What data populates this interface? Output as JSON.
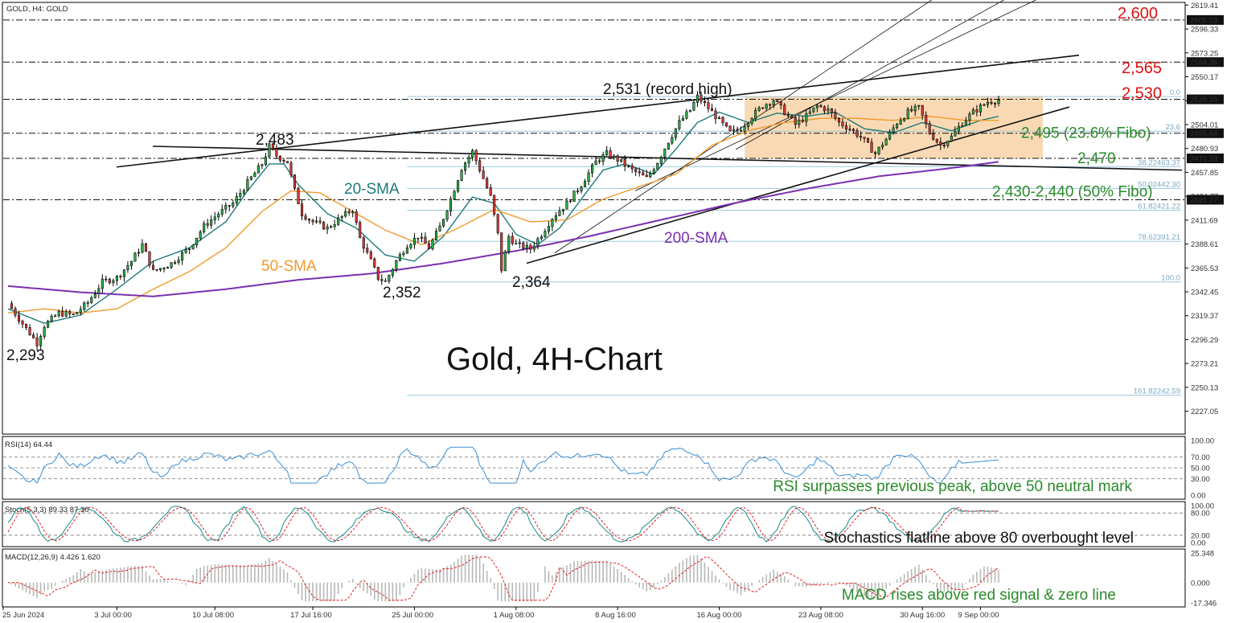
{
  "header": {
    "symbol_label": "GOLD, H4:  GOLD"
  },
  "chart_data": {
    "type": "candlestick",
    "title": "Gold, 4H-Chart",
    "symbol": "GOLD",
    "timeframe": "H4",
    "ylim": [
      2205,
      2622
    ],
    "y_ticks": [
      "2619.41",
      "2596.33",
      "2573.25",
      "2550.17",
      "2527.09",
      "2504.01",
      "2480.93",
      "2457.85",
      "2434.77",
      "2411.69",
      "2388.61",
      "2365.53",
      "2342.45",
      "2319.37",
      "2296.29",
      "2273.21",
      "2250.13",
      "2227.05"
    ],
    "x_ticks": [
      "25 Jun 2024",
      "3 Jul 00:00",
      "10 Jul 08:00",
      "17 Jul 16:00",
      "25 Jul 00:00",
      "1 Aug 08:00",
      "8 Aug 16:00",
      "16 Aug 00:00",
      "23 Aug 08:00",
      "30 Aug 16:00",
      "9 Sep 00:00"
    ],
    "price_path": [
      [
        0,
        2331
      ],
      [
        5,
        2307
      ],
      [
        8,
        2293
      ],
      [
        10,
        2310
      ],
      [
        14,
        2322
      ],
      [
        18,
        2320
      ],
      [
        22,
        2332
      ],
      [
        26,
        2352
      ],
      [
        30,
        2356
      ],
      [
        34,
        2372
      ],
      [
        37,
        2388
      ],
      [
        40,
        2362
      ],
      [
        45,
        2370
      ],
      [
        50,
        2385
      ],
      [
        54,
        2406
      ],
      [
        58,
        2418
      ],
      [
        62,
        2428
      ],
      [
        66,
        2448
      ],
      [
        70,
        2466
      ],
      [
        72,
        2483
      ],
      [
        74,
        2474
      ],
      [
        77,
        2468
      ],
      [
        79,
        2440
      ],
      [
        81,
        2418
      ],
      [
        84,
        2410
      ],
      [
        88,
        2404
      ],
      [
        92,
        2415
      ],
      [
        95,
        2422
      ],
      [
        97,
        2394
      ],
      [
        100,
        2372
      ],
      [
        102,
        2356
      ],
      [
        104,
        2352
      ],
      [
        107,
        2372
      ],
      [
        110,
        2388
      ],
      [
        113,
        2396
      ],
      [
        116,
        2385
      ],
      [
        119,
        2405
      ],
      [
        122,
        2432
      ],
      [
        125,
        2462
      ],
      [
        128,
        2478
      ],
      [
        131,
        2452
      ],
      [
        133,
        2434
      ],
      [
        135,
        2398
      ],
      [
        136,
        2364
      ],
      [
        138,
        2396
      ],
      [
        140,
        2388
      ],
      [
        144,
        2384
      ],
      [
        147,
        2398
      ],
      [
        150,
        2414
      ],
      [
        154,
        2428
      ],
      [
        158,
        2446
      ],
      [
        162,
        2468
      ],
      [
        165,
        2476
      ],
      [
        168,
        2470
      ],
      [
        172,
        2460
      ],
      [
        176,
        2452
      ],
      [
        179,
        2468
      ],
      [
        182,
        2488
      ],
      [
        185,
        2506
      ],
      [
        188,
        2518
      ],
      [
        190,
        2531
      ],
      [
        193,
        2520
      ],
      [
        196,
        2508
      ],
      [
        199,
        2496
      ],
      [
        202,
        2500
      ],
      [
        205,
        2512
      ],
      [
        208,
        2522
      ],
      [
        211,
        2528
      ],
      [
        214,
        2516
      ],
      [
        217,
        2504
      ],
      [
        220,
        2512
      ],
      [
        223,
        2522
      ],
      [
        226,
        2518
      ],
      [
        229,
        2506
      ],
      [
        232,
        2500
      ],
      [
        235,
        2492
      ],
      [
        237,
        2484
      ],
      [
        239,
        2476
      ],
      [
        242,
        2490
      ],
      [
        245,
        2506
      ],
      [
        248,
        2516
      ],
      [
        251,
        2520
      ],
      [
        254,
        2496
      ],
      [
        257,
        2484
      ],
      [
        260,
        2492
      ],
      [
        263,
        2506
      ],
      [
        266,
        2516
      ],
      [
        270,
        2526
      ],
      [
        273,
        2528
      ]
    ],
    "series": [
      {
        "name": "20-SMA",
        "color": "#1f7a7a",
        "path": [
          [
            0,
            2326
          ],
          [
            10,
            2312
          ],
          [
            20,
            2320
          ],
          [
            30,
            2345
          ],
          [
            40,
            2372
          ],
          [
            50,
            2385
          ],
          [
            60,
            2410
          ],
          [
            66,
            2440
          ],
          [
            72,
            2466
          ],
          [
            76,
            2466
          ],
          [
            80,
            2446
          ],
          [
            88,
            2418
          ],
          [
            96,
            2404
          ],
          [
            104,
            2378
          ],
          [
            112,
            2372
          ],
          [
            120,
            2396
          ],
          [
            128,
            2434
          ],
          [
            134,
            2428
          ],
          [
            140,
            2398
          ],
          [
            146,
            2388
          ],
          [
            152,
            2404
          ],
          [
            158,
            2432
          ],
          [
            164,
            2460
          ],
          [
            170,
            2466
          ],
          [
            178,
            2456
          ],
          [
            184,
            2480
          ],
          [
            190,
            2506
          ],
          [
            196,
            2516
          ],
          [
            204,
            2506
          ],
          [
            212,
            2515
          ],
          [
            220,
            2512
          ],
          [
            228,
            2516
          ],
          [
            236,
            2500
          ],
          [
            244,
            2496
          ],
          [
            252,
            2506
          ],
          [
            260,
            2498
          ],
          [
            268,
            2508
          ],
          [
            273,
            2512
          ]
        ]
      },
      {
        "name": "50-SMA",
        "color": "#f29a2e",
        "path": [
          [
            0,
            2322
          ],
          [
            10,
            2326
          ],
          [
            20,
            2322
          ],
          [
            30,
            2326
          ],
          [
            40,
            2345
          ],
          [
            50,
            2362
          ],
          [
            60,
            2385
          ],
          [
            70,
            2420
          ],
          [
            78,
            2440
          ],
          [
            86,
            2438
          ],
          [
            94,
            2422
          ],
          [
            104,
            2402
          ],
          [
            114,
            2388
          ],
          [
            124,
            2404
          ],
          [
            134,
            2422
          ],
          [
            144,
            2410
          ],
          [
            154,
            2412
          ],
          [
            164,
            2432
          ],
          [
            174,
            2444
          ],
          [
            184,
            2456
          ],
          [
            194,
            2484
          ],
          [
            204,
            2498
          ],
          [
            214,
            2506
          ],
          [
            224,
            2510
          ],
          [
            234,
            2510
          ],
          [
            244,
            2508
          ],
          [
            254,
            2512
          ],
          [
            264,
            2508
          ],
          [
            273,
            2508
          ]
        ]
      },
      {
        "name": "200-SMA",
        "color": "#7b2fb0",
        "path": [
          [
            0,
            2348
          ],
          [
            20,
            2342
          ],
          [
            40,
            2338
          ],
          [
            60,
            2345
          ],
          [
            80,
            2354
          ],
          [
            100,
            2360
          ],
          [
            120,
            2370
          ],
          [
            140,
            2382
          ],
          [
            160,
            2396
          ],
          [
            180,
            2412
          ],
          [
            200,
            2428
          ],
          [
            220,
            2442
          ],
          [
            240,
            2454
          ],
          [
            260,
            2462
          ],
          [
            273,
            2468
          ]
        ]
      }
    ],
    "levels": [
      {
        "label": "2,600",
        "value": 2605.03,
        "style": "dashdot",
        "color": "#e01010",
        "tag": "2605.03"
      },
      {
        "label": "2,565",
        "value": 2564.36,
        "style": "dashdot",
        "color": "#e01010",
        "tag": "2564.36"
      },
      {
        "label": "2,530",
        "value": 2528.39,
        "style": "dashdot",
        "color": "#e01010",
        "tag": "2528.39"
      },
      {
        "label": "2,495 (23.6% Fibo)",
        "value": 2495.64,
        "style": "dashdot",
        "color": "#2a8a2a",
        "tag": "2495.64"
      },
      {
        "label": "2,470",
        "value": 2471.33,
        "style": "dashdot",
        "color": "#2a8a2a",
        "tag": "2471.33"
      },
      {
        "label": "2,430-2,440 (50% Fibo)",
        "value": 2431.37,
        "style": "dashdot",
        "color": "#2a8a2a",
        "tag": "2431.37"
      }
    ],
    "fibo": [
      {
        "label": "0.0",
        "value": 2531
      },
      {
        "label": "23.6",
        "value": 2497.6
      },
      {
        "label": "38.22463.37",
        "value": 2463.37
      },
      {
        "label": "50.02442.30",
        "value": 2442.3
      },
      {
        "label": "61.82421.22",
        "value": 2421.22
      },
      {
        "label": "78.62391.21",
        "value": 2391.21
      },
      {
        "label": "100.0",
        "value": 2352
      },
      {
        "label": "161.82242.59",
        "value": 2242.59
      }
    ],
    "point_labels": [
      {
        "text": "2,293",
        "x": 8,
        "y": 2293
      },
      {
        "text": "2,483",
        "x": 72,
        "y": 2483
      },
      {
        "text": "2,352",
        "x": 104,
        "y": 2352
      },
      {
        "text": "2,364",
        "x": 136,
        "y": 2364
      },
      {
        "text": "2,531 (record high)",
        "x": 190,
        "y": 2531
      }
    ],
    "sma_labels": [
      {
        "text": "20-SMA",
        "color": "#1f7a7a"
      },
      {
        "text": "50-SMA",
        "color": "#f29a2e"
      },
      {
        "text": "200-SMA",
        "color": "#7b2fb0"
      }
    ],
    "rsi": {
      "label": "RSI(14) 64.44",
      "ticks": [
        "100.00",
        "70.00",
        "50.00",
        "30.00",
        "0.00"
      ],
      "annotation": "RSI surpasses previous peak, above 50 neutral mark"
    },
    "stoch": {
      "label": "Stoch(5,3,3) 89.33 87.30",
      "ticks": [
        "100.00",
        "80.00",
        "20.00",
        "0.00"
      ],
      "annotation": "Stochastics flatline above 80 overbought level"
    },
    "macd": {
      "label": "MACD(12,26,9) 4.426 1.620",
      "ticks": [
        "25.348",
        "0.000",
        "-17.346"
      ],
      "annotation": "MACD rises above red signal & zero line"
    }
  }
}
